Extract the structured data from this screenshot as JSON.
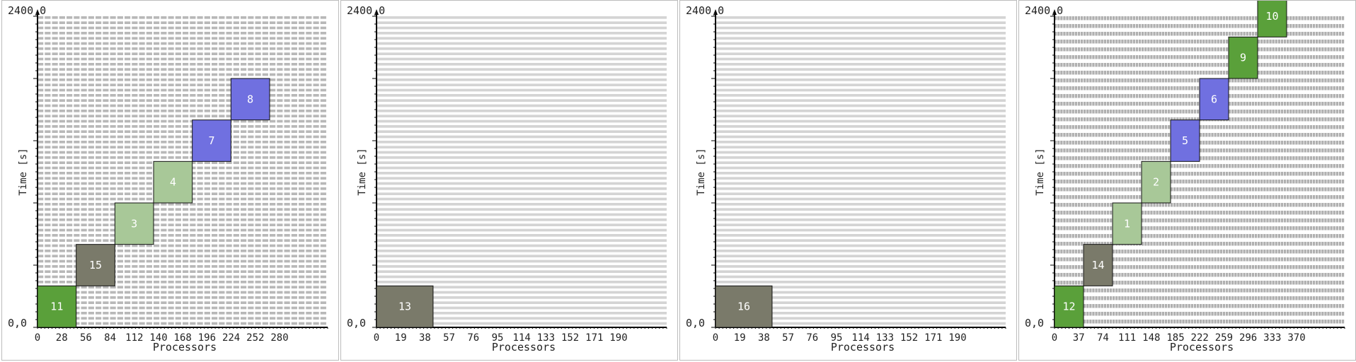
{
  "chart_data": [
    {
      "type": "gantt",
      "xlabel": "Processors",
      "ylabel": "Time [s]",
      "y_origin_label": "0,0",
      "y_top_label": "2400,0",
      "xlim": [
        0,
        300
      ],
      "ylim": [
        0,
        2400
      ],
      "xticks": [
        "0",
        "28",
        "56",
        "84",
        "112",
        "140",
        "168",
        "196",
        "224",
        "252",
        "280"
      ],
      "tasks": [
        {
          "id": "11",
          "proc_start": 0,
          "proc_end": 40,
          "t_start": 0,
          "t_end": 320,
          "color": "#5aa03a"
        },
        {
          "id": "15",
          "proc_start": 40,
          "proc_end": 80,
          "t_start": 320,
          "t_end": 640,
          "color": "#7a7a6a"
        },
        {
          "id": "3",
          "proc_start": 80,
          "proc_end": 120,
          "t_start": 640,
          "t_end": 960,
          "color": "#a8c898"
        },
        {
          "id": "4",
          "proc_start": 120,
          "proc_end": 160,
          "t_start": 960,
          "t_end": 1280,
          "color": "#a8c898"
        },
        {
          "id": "7",
          "proc_start": 160,
          "proc_end": 200,
          "t_start": 1280,
          "t_end": 1600,
          "color": "#7070e0"
        },
        {
          "id": "8",
          "proc_start": 200,
          "proc_end": 240,
          "t_start": 1600,
          "t_end": 1920,
          "color": "#7070e0"
        }
      ]
    },
    {
      "type": "gantt",
      "xlabel": "Processors",
      "ylabel": "Time [s]",
      "y_origin_label": "0,0",
      "y_top_label": "2400,0",
      "xlim": [
        0,
        200
      ],
      "ylim": [
        0,
        2400
      ],
      "xticks": [
        "0",
        "19",
        "38",
        "57",
        "76",
        "95",
        "114",
        "133",
        "152",
        "171",
        "190"
      ],
      "tasks": [
        {
          "id": "13",
          "proc_start": 0,
          "proc_end": 39,
          "t_start": 0,
          "t_end": 320,
          "color": "#7a7a6a"
        }
      ]
    },
    {
      "type": "gantt",
      "xlabel": "Processors",
      "ylabel": "Time [s]",
      "y_origin_label": "0,0",
      "y_top_label": "2400,0",
      "xlim": [
        0,
        200
      ],
      "ylim": [
        0,
        2400
      ],
      "xticks": [
        "0",
        "19",
        "38",
        "57",
        "76",
        "95",
        "114",
        "133",
        "152",
        "171",
        "190"
      ],
      "tasks": [
        {
          "id": "16",
          "proc_start": 0,
          "proc_end": 39,
          "t_start": 0,
          "t_end": 320,
          "color": "#7a7a6a"
        }
      ]
    },
    {
      "type": "gantt",
      "xlabel": "Processors",
      "ylabel": "Time [s]",
      "y_origin_label": "0,0",
      "y_top_label": "2400,0",
      "xlim": [
        0,
        400
      ],
      "ylim": [
        0,
        2400
      ],
      "xticks": [
        "0",
        "37",
        "74",
        "111",
        "148",
        "185",
        "222",
        "259",
        "296",
        "333",
        "370"
      ],
      "tasks": [
        {
          "id": "12",
          "proc_start": 0,
          "proc_end": 40,
          "t_start": 0,
          "t_end": 320,
          "color": "#5aa03a"
        },
        {
          "id": "14",
          "proc_start": 40,
          "proc_end": 80,
          "t_start": 320,
          "t_end": 640,
          "color": "#7a7a6a"
        },
        {
          "id": "1",
          "proc_start": 80,
          "proc_end": 120,
          "t_start": 640,
          "t_end": 960,
          "color": "#a8c898"
        },
        {
          "id": "2",
          "proc_start": 120,
          "proc_end": 160,
          "t_start": 960,
          "t_end": 1280,
          "color": "#a8c898"
        },
        {
          "id": "5",
          "proc_start": 160,
          "proc_end": 200,
          "t_start": 1280,
          "t_end": 1600,
          "color": "#7070e0"
        },
        {
          "id": "6",
          "proc_start": 200,
          "proc_end": 240,
          "t_start": 1600,
          "t_end": 1920,
          "color": "#7070e0"
        },
        {
          "id": "9",
          "proc_start": 240,
          "proc_end": 280,
          "t_start": 1920,
          "t_end": 2240,
          "color": "#5aa03a"
        },
        {
          "id": "10",
          "proc_start": 280,
          "proc_end": 320,
          "t_start": 2240,
          "t_end": 2560,
          "color": "#5aa03a"
        }
      ]
    }
  ]
}
